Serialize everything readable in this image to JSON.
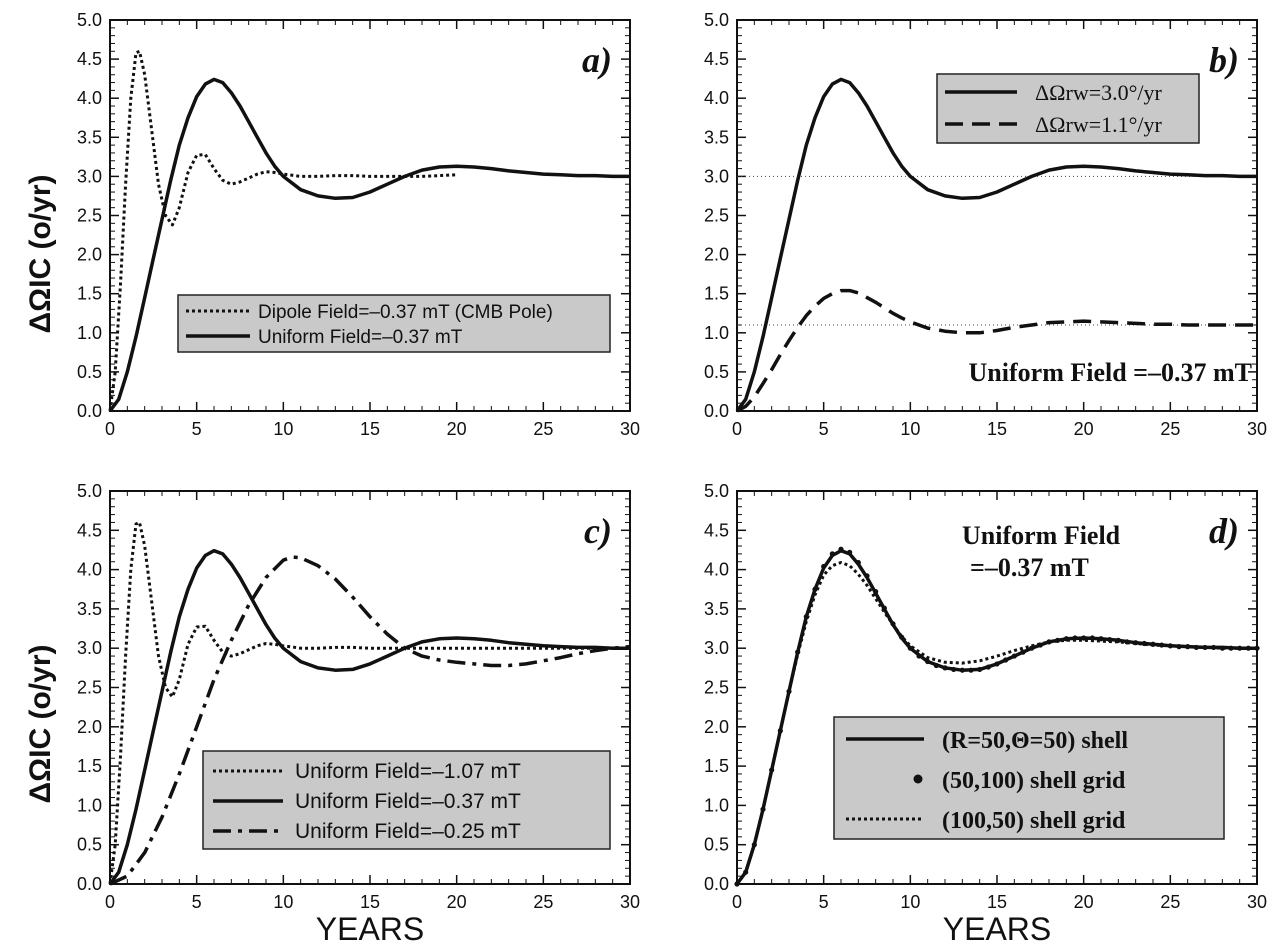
{
  "figure": {
    "ylabel": "ΔΩIC (o/yr)",
    "xlabel": "YEARS"
  },
  "chart_data": [
    {
      "type": "line",
      "panel_label": "a)",
      "xlim": [
        0,
        30
      ],
      "ylim": [
        0,
        5
      ],
      "xticks": [
        "0",
        "5",
        "10",
        "15",
        "20",
        "25",
        "30"
      ],
      "yticks": [
        "0.0",
        "0.5",
        "1.0",
        "1.5",
        "2.0",
        "2.5",
        "3.0",
        "3.5",
        "4.0",
        "4.5",
        "5.0"
      ],
      "ylabel": "ΔΩIC (o/yr)",
      "xlabel": "",
      "legend_location": "lower-right",
      "series": [
        {
          "name": "Dipole Field=–0.37 mT (CMB Pole)",
          "style": "dotted",
          "x": [
            0,
            0.3,
            0.6,
            0.9,
            1.2,
            1.5,
            1.7,
            2.0,
            2.4,
            2.8,
            3.2,
            3.6,
            4.0,
            4.5,
            5.0,
            5.5,
            6.0,
            6.5,
            7.0,
            7.5,
            8.0,
            8.5,
            9.0,
            9.5,
            10,
            11,
            12,
            13,
            14,
            15,
            16,
            17,
            18,
            19,
            20
          ],
          "y": [
            0,
            0.5,
            1.6,
            2.9,
            4.0,
            4.58,
            4.6,
            4.3,
            3.6,
            2.9,
            2.5,
            2.38,
            2.6,
            3.05,
            3.27,
            3.28,
            3.1,
            2.95,
            2.9,
            2.93,
            2.98,
            3.03,
            3.06,
            3.05,
            3.03,
            3.0,
            3.0,
            3.01,
            3.01,
            3.0,
            3.0,
            3.0,
            3.0,
            3.01,
            3.02
          ]
        },
        {
          "name": "Uniform Field=–0.37 mT",
          "style": "solid",
          "x": [
            0,
            0.5,
            1,
            1.5,
            2,
            2.5,
            3,
            3.5,
            4,
            4.5,
            5,
            5.5,
            6,
            6.5,
            7,
            7.5,
            8,
            8.5,
            9,
            9.5,
            10,
            11,
            12,
            13,
            14,
            15,
            16,
            17,
            18,
            19,
            20,
            21,
            22,
            23,
            24,
            25,
            26,
            27,
            28,
            29,
            30
          ],
          "y": [
            0,
            0.15,
            0.5,
            0.95,
            1.45,
            1.95,
            2.45,
            2.95,
            3.4,
            3.75,
            4.02,
            4.18,
            4.24,
            4.2,
            4.07,
            3.9,
            3.7,
            3.5,
            3.3,
            3.13,
            3.0,
            2.83,
            2.75,
            2.72,
            2.73,
            2.8,
            2.9,
            3.0,
            3.08,
            3.12,
            3.13,
            3.12,
            3.1,
            3.07,
            3.05,
            3.03,
            3.02,
            3.01,
            3.01,
            3.0,
            3.0
          ]
        }
      ]
    },
    {
      "type": "line",
      "panel_label": "b)",
      "xlim": [
        0,
        30
      ],
      "ylim": [
        0,
        5
      ],
      "xticks": [
        "0",
        "5",
        "10",
        "15",
        "20",
        "25",
        "30"
      ],
      "yticks": [
        "0.0",
        "0.5",
        "1.0",
        "1.5",
        "2.0",
        "2.5",
        "3.0",
        "3.5",
        "4.0",
        "4.5",
        "5.0"
      ],
      "legend_location": "top-right",
      "annotation": "Uniform Field =–0.37 mT",
      "reference_lines": [
        3.0,
        1.1
      ],
      "series": [
        {
          "name": "ΔΩrw=3.0°/yr",
          "style": "solid",
          "x": [
            0,
            0.5,
            1,
            1.5,
            2,
            2.5,
            3,
            3.5,
            4,
            4.5,
            5,
            5.5,
            6,
            6.5,
            7,
            7.5,
            8,
            8.5,
            9,
            9.5,
            10,
            11,
            12,
            13,
            14,
            15,
            16,
            17,
            18,
            19,
            20,
            21,
            22,
            23,
            24,
            25,
            26,
            27,
            28,
            29,
            30
          ],
          "y": [
            0,
            0.15,
            0.5,
            0.95,
            1.45,
            1.95,
            2.45,
            2.95,
            3.4,
            3.75,
            4.02,
            4.18,
            4.24,
            4.2,
            4.07,
            3.9,
            3.7,
            3.5,
            3.3,
            3.13,
            3.0,
            2.83,
            2.75,
            2.72,
            2.73,
            2.8,
            2.9,
            3.0,
            3.08,
            3.12,
            3.13,
            3.12,
            3.1,
            3.07,
            3.05,
            3.03,
            3.02,
            3.01,
            3.01,
            3.0,
            3.0
          ]
        },
        {
          "name": "ΔΩrw=1.1°/yr",
          "style": "dashed",
          "x": [
            0,
            0.5,
            1,
            1.5,
            2,
            2.5,
            3,
            3.5,
            4,
            4.5,
            5,
            5.5,
            6,
            6.5,
            7,
            7.5,
            8,
            8.5,
            9,
            9.5,
            10,
            11,
            12,
            13,
            14,
            15,
            16,
            17,
            18,
            19,
            20,
            21,
            22,
            23,
            24,
            25,
            26,
            27,
            28,
            29,
            30
          ],
          "y": [
            0,
            0.06,
            0.18,
            0.35,
            0.53,
            0.72,
            0.9,
            1.07,
            1.22,
            1.34,
            1.44,
            1.5,
            1.54,
            1.54,
            1.51,
            1.45,
            1.39,
            1.32,
            1.25,
            1.19,
            1.14,
            1.06,
            1.02,
            1.0,
            1.0,
            1.03,
            1.07,
            1.1,
            1.13,
            1.14,
            1.15,
            1.14,
            1.13,
            1.12,
            1.11,
            1.11,
            1.1,
            1.1,
            1.1,
            1.1,
            1.1
          ]
        }
      ]
    },
    {
      "type": "line",
      "panel_label": "c)",
      "xlim": [
        0,
        30
      ],
      "ylim": [
        0,
        5
      ],
      "xticks": [
        "0",
        "5",
        "10",
        "15",
        "20",
        "25",
        "30"
      ],
      "yticks": [
        "0.0",
        "0.5",
        "1.0",
        "1.5",
        "2.0",
        "2.5",
        "3.0",
        "3.5",
        "4.0",
        "4.5",
        "5.0"
      ],
      "ylabel": "ΔΩIC (o/yr)",
      "xlabel": "YEARS",
      "legend_location": "lower-right",
      "series": [
        {
          "name": "Uniform Field=–1.07 mT",
          "style": "dotted",
          "x": [
            0,
            0.3,
            0.6,
            0.9,
            1.2,
            1.5,
            1.7,
            2.0,
            2.4,
            2.8,
            3.2,
            3.6,
            4.0,
            4.5,
            5.0,
            5.5,
            6.0,
            6.5,
            7.0,
            7.5,
            8.0,
            8.5,
            9.0,
            9.5,
            10,
            11,
            12,
            13,
            14,
            15,
            16,
            17,
            18,
            19,
            20,
            22,
            24,
            26,
            28,
            30
          ],
          "y": [
            0,
            0.5,
            1.6,
            2.9,
            4.0,
            4.58,
            4.6,
            4.3,
            3.6,
            2.9,
            2.5,
            2.38,
            2.6,
            3.05,
            3.27,
            3.28,
            3.1,
            2.95,
            2.9,
            2.93,
            2.98,
            3.03,
            3.06,
            3.05,
            3.03,
            3.0,
            3.0,
            3.01,
            3.01,
            3.0,
            3.0,
            3.0,
            3.0,
            3.0,
            3.0,
            3.0,
            3.0,
            3.0,
            3.0,
            3.0
          ]
        },
        {
          "name": "Uniform Field=–0.37 mT",
          "style": "solid",
          "x": [
            0,
            0.5,
            1,
            1.5,
            2,
            2.5,
            3,
            3.5,
            4,
            4.5,
            5,
            5.5,
            6,
            6.5,
            7,
            7.5,
            8,
            8.5,
            9,
            9.5,
            10,
            11,
            12,
            13,
            14,
            15,
            16,
            17,
            18,
            19,
            20,
            21,
            22,
            23,
            24,
            25,
            26,
            27,
            28,
            29,
            30
          ],
          "y": [
            0,
            0.15,
            0.5,
            0.95,
            1.45,
            1.95,
            2.45,
            2.95,
            3.4,
            3.75,
            4.02,
            4.18,
            4.24,
            4.2,
            4.07,
            3.9,
            3.7,
            3.5,
            3.3,
            3.13,
            3.0,
            2.83,
            2.75,
            2.72,
            2.73,
            2.8,
            2.9,
            3.0,
            3.08,
            3.12,
            3.13,
            3.12,
            3.1,
            3.07,
            3.05,
            3.03,
            3.02,
            3.01,
            3.01,
            3.0,
            3.0
          ]
        },
        {
          "name": "Uniform Field=–0.25 mT",
          "style": "dashdot",
          "x": [
            0,
            1,
            2,
            3,
            4,
            5,
            6,
            7,
            8,
            9,
            10,
            10.5,
            11,
            12,
            13,
            14,
            15,
            16,
            17,
            18,
            19,
            20,
            21,
            22,
            23,
            24,
            25,
            26,
            27,
            28,
            29,
            30
          ],
          "y": [
            0,
            0.1,
            0.4,
            0.85,
            1.4,
            2.0,
            2.6,
            3.1,
            3.55,
            3.9,
            4.12,
            4.16,
            4.15,
            4.05,
            3.88,
            3.65,
            3.4,
            3.18,
            3.0,
            2.9,
            2.85,
            2.82,
            2.8,
            2.78,
            2.78,
            2.8,
            2.84,
            2.88,
            2.93,
            2.97,
            3.0,
            3.02
          ]
        }
      ]
    },
    {
      "type": "line",
      "panel_label": "d)",
      "xlim": [
        0,
        30
      ],
      "ylim": [
        0,
        5
      ],
      "xticks": [
        "0",
        "5",
        "10",
        "15",
        "20",
        "25",
        "30"
      ],
      "yticks": [
        "0.0",
        "0.5",
        "1.0",
        "1.5",
        "2.0",
        "2.5",
        "3.0",
        "3.5",
        "4.0",
        "4.5",
        "5.0"
      ],
      "xlabel": "YEARS",
      "legend_location": "lower-right",
      "annotation_lines": [
        "Uniform Field",
        "=–0.37 mT"
      ],
      "series": [
        {
          "name": "(R=50,Θ=50) shell",
          "style": "solid",
          "x": [
            0,
            0.5,
            1,
            1.5,
            2,
            2.5,
            3,
            3.5,
            4,
            4.5,
            5,
            5.5,
            6,
            6.5,
            7,
            7.5,
            8,
            8.5,
            9,
            9.5,
            10,
            11,
            12,
            13,
            14,
            15,
            16,
            17,
            18,
            19,
            20,
            21,
            22,
            23,
            24,
            25,
            26,
            27,
            28,
            29,
            30
          ],
          "y": [
            0,
            0.15,
            0.5,
            0.95,
            1.45,
            1.95,
            2.45,
            2.95,
            3.4,
            3.75,
            4.02,
            4.18,
            4.24,
            4.2,
            4.07,
            3.9,
            3.7,
            3.5,
            3.3,
            3.13,
            3.0,
            2.83,
            2.75,
            2.72,
            2.73,
            2.8,
            2.9,
            3.0,
            3.08,
            3.12,
            3.13,
            3.12,
            3.1,
            3.07,
            3.05,
            3.03,
            3.02,
            3.01,
            3.01,
            3.0,
            3.0
          ]
        },
        {
          "name": "(50,100) shell grid",
          "style": "dots",
          "x": [
            0,
            0.5,
            1,
            1.5,
            2,
            2.5,
            3,
            3.5,
            4,
            4.5,
            5,
            5.5,
            6,
            6.5,
            7,
            7.5,
            8,
            8.5,
            9,
            9.5,
            10,
            10.5,
            11,
            11.5,
            12,
            12.5,
            13,
            13.5,
            14,
            14.5,
            15,
            15.5,
            16,
            16.5,
            17,
            17.5,
            18,
            18.5,
            19,
            19.5,
            20,
            20.5,
            21,
            21.5,
            22,
            22.5,
            23,
            23.5,
            24,
            24.5,
            25,
            25.5,
            26,
            26.5,
            27,
            27.5,
            28,
            28.5,
            29,
            29.5,
            30
          ],
          "y": [
            0,
            0.15,
            0.5,
            0.95,
            1.45,
            1.95,
            2.45,
            2.95,
            3.4,
            3.75,
            4.04,
            4.2,
            4.26,
            4.22,
            4.09,
            3.92,
            3.72,
            3.51,
            3.31,
            3.14,
            3.0,
            2.9,
            2.83,
            2.78,
            2.75,
            2.73,
            2.72,
            2.72,
            2.73,
            2.76,
            2.8,
            2.85,
            2.9,
            2.95,
            3.0,
            3.04,
            3.08,
            3.1,
            3.12,
            3.13,
            3.13,
            3.13,
            3.12,
            3.11,
            3.1,
            3.08,
            3.07,
            3.06,
            3.05,
            3.04,
            3.03,
            3.02,
            3.02,
            3.01,
            3.01,
            3.01,
            3.0,
            3.0,
            3.0,
            3.0,
            3.0
          ]
        },
        {
          "name": "(100,50) shell grid",
          "style": "dotted",
          "x": [
            0,
            0.5,
            1,
            1.5,
            2,
            2.5,
            3,
            3.5,
            4,
            4.5,
            5,
            5.5,
            6,
            6.5,
            7,
            7.5,
            8,
            8.5,
            9,
            9.5,
            10,
            11,
            12,
            13,
            14,
            15,
            16,
            17,
            18,
            19,
            20,
            21,
            22,
            23,
            24,
            25,
            26,
            27,
            28,
            29,
            30
          ],
          "y": [
            0,
            0.15,
            0.5,
            0.95,
            1.45,
            1.95,
            2.45,
            2.92,
            3.34,
            3.68,
            3.93,
            4.05,
            4.09,
            4.05,
            3.94,
            3.8,
            3.63,
            3.46,
            3.3,
            3.15,
            3.03,
            2.88,
            2.82,
            2.81,
            2.84,
            2.9,
            2.97,
            3.03,
            3.08,
            3.1,
            3.1,
            3.09,
            3.08,
            3.06,
            3.04,
            3.03,
            3.02,
            3.01,
            3.0,
            3.0,
            3.0
          ]
        }
      ]
    }
  ]
}
